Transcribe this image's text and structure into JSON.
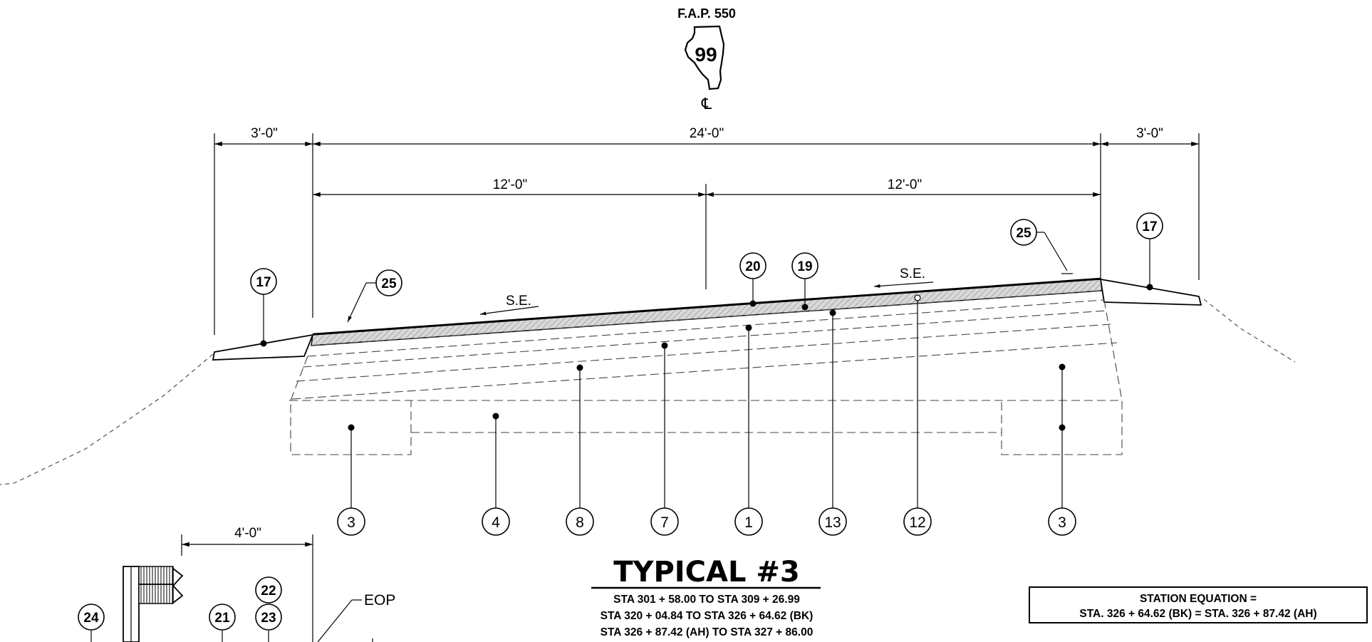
{
  "header": {
    "fap": "F.A.P. 550",
    "route_number": "99",
    "centerline_symbol": "℄",
    "route_marker_icon": "illinois-state-outline-icon"
  },
  "dimensions": {
    "left_shoulder": "3'-0\"",
    "pavement": "24'-0\"",
    "right_shoulder": "3'-0\"",
    "left_lane": "12'-0\"",
    "right_lane": "12'-0\"",
    "detail_width": "4'-0\""
  },
  "superelevation": {
    "left": "S.E.",
    "right": "S.E."
  },
  "callouts": {
    "top_left_17": "17",
    "top_left_25": "25",
    "top_20": "20",
    "top_19": "19",
    "top_right_25": "25",
    "top_right_17": "17",
    "bottom": [
      "3",
      "4",
      "8",
      "7",
      "1",
      "13",
      "12",
      "3"
    ],
    "detail": [
      "24",
      "21",
      "22",
      "23"
    ]
  },
  "detail": {
    "eop_label": "EOP"
  },
  "title_block": {
    "title": "TYPICAL  #3",
    "stations": [
      "STA  301 + 58.00  TO  STA  309 + 26.99",
      "STA  320 + 04.84  TO  STA  326 + 64.62  (BK)",
      "STA  326 + 87.42  (AH) TO  STA  327 + 86.00"
    ]
  },
  "station_equation": {
    "heading": "STATION  EQUATION  =",
    "equation": "STA. 326 + 64.62  (BK)   =    STA. 326 + 87.42  (AH)"
  }
}
